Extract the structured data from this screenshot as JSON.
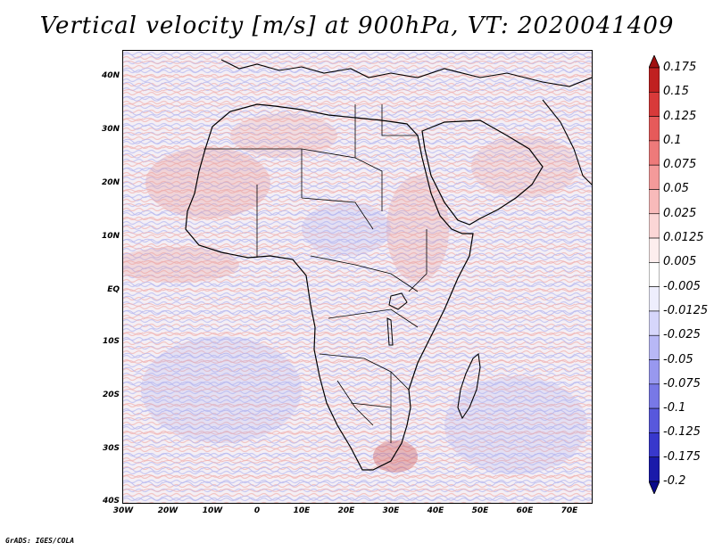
{
  "title": "Vertical velocity [m/s] at 900hPa, VT: 2020041409",
  "credit": "GrADS: IGES/COLA",
  "map": {
    "lon_range": [
      -30,
      75
    ],
    "lat_range": [
      -40,
      45
    ],
    "y_ticks": [
      "40N",
      "30N",
      "20N",
      "10N",
      "EQ",
      "10S",
      "20S",
      "30S",
      "40S"
    ],
    "x_ticks": [
      "30W",
      "20W",
      "10W",
      "0",
      "10E",
      "20E",
      "30E",
      "40E",
      "50E",
      "60E",
      "70E"
    ]
  },
  "colorbar": {
    "labels": [
      "0.175",
      "0.15",
      "0.125",
      "0.1",
      "0.075",
      "0.05",
      "0.025",
      "0.0125",
      "0.005",
      "-0.005",
      "-0.0125",
      "-0.025",
      "-0.05",
      "-0.075",
      "-0.1",
      "-0.125",
      "-0.175",
      "-0.2"
    ],
    "colors": [
      "#a01010",
      "#c02020",
      "#d83a3a",
      "#e65a5a",
      "#ee7a7a",
      "#f49a9a",
      "#f8baba",
      "#fbd6d6",
      "#fdeeee",
      "#ffffff",
      "#eeeefd",
      "#d6d6fb",
      "#b8b8f6",
      "#9898ef",
      "#7878e6",
      "#5858dc",
      "#3838cc",
      "#1a1aaa",
      "#0a0a8a"
    ]
  }
}
